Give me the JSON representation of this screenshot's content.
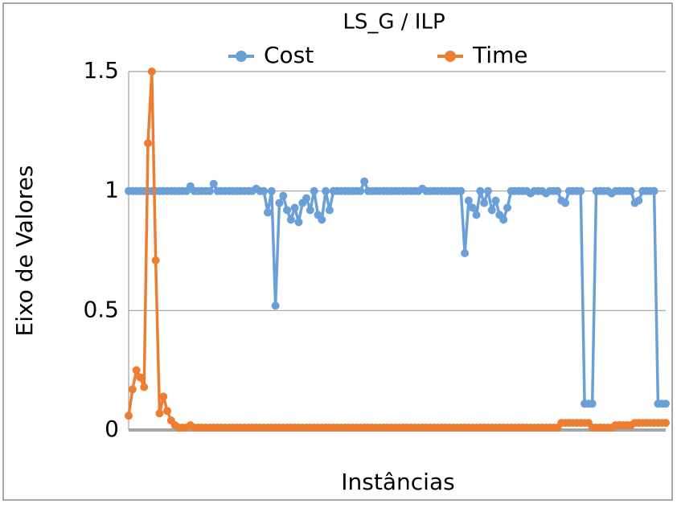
{
  "chart_data": {
    "type": "line",
    "title": "LS_G / ILP",
    "y_label": "Eixo de Valores",
    "x_label": "Instâncias",
    "categories": [
      null,
      null,
      null,
      null,
      null,
      null,
      null,
      null,
      null,
      null,
      null,
      null,
      null,
      null,
      null,
      null,
      null,
      null,
      null,
      null,
      null,
      null,
      null,
      null,
      null,
      null,
      null,
      null,
      null,
      null,
      null,
      null,
      null,
      null,
      null,
      null,
      null,
      null,
      null,
      null,
      null,
      null,
      null,
      null,
      null,
      null,
      null,
      null,
      null,
      null,
      null,
      null,
      null,
      null,
      null,
      null,
      null,
      null,
      null,
      null,
      null,
      null,
      null,
      null,
      null,
      null,
      null,
      null,
      null,
      null,
      null,
      null,
      null,
      null,
      null,
      null,
      null,
      null,
      null,
      null,
      null,
      null,
      null,
      null,
      null,
      null,
      null,
      null,
      null,
      null,
      null,
      null,
      null,
      null,
      null,
      null,
      null,
      null,
      null,
      null,
      null,
      null,
      null,
      null,
      null,
      null,
      null,
      null,
      null,
      null,
      null,
      null,
      null,
      null,
      null,
      null,
      null,
      null,
      null,
      null,
      null,
      null,
      null,
      null,
      null,
      null,
      null,
      null,
      null,
      null,
      null,
      null,
      null,
      null,
      null,
      null,
      null,
      null,
      null,
      null
    ],
    "series": [
      {
        "name": "Cost",
        "color": "#6a9fd8",
        "values": [
          1,
          1,
          1,
          1,
          1,
          1,
          1,
          1,
          1,
          1,
          1,
          1,
          1,
          1,
          1,
          1,
          1.02,
          1,
          1,
          1,
          1,
          1,
          1.03,
          1,
          1,
          1,
          1,
          1,
          1,
          1,
          1,
          1,
          1,
          1.01,
          1,
          1,
          0.91,
          1,
          0.52,
          0.95,
          0.98,
          0.92,
          0.88,
          0.93,
          0.87,
          0.95,
          0.97,
          0.92,
          1,
          0.9,
          0.88,
          1,
          0.92,
          1,
          1,
          1,
          1,
          1,
          1,
          1,
          1,
          1.04,
          1,
          1,
          1,
          1,
          1,
          1,
          1,
          1,
          1,
          1,
          1,
          1,
          1,
          1,
          1.01,
          1,
          1,
          1,
          1,
          1,
          1,
          1,
          1,
          1,
          1,
          0.74,
          0.96,
          0.93,
          0.9,
          1,
          0.95,
          1,
          0.92,
          0.96,
          0.9,
          0.88,
          0.93,
          1,
          1,
          1,
          1,
          1,
          0.99,
          1,
          1,
          1,
          0.99,
          1,
          1,
          1,
          0.96,
          0.95,
          1,
          1,
          1,
          1,
          0.11,
          0.11,
          0.11,
          1,
          1,
          1,
          1,
          0.99,
          1,
          1,
          1,
          1,
          1,
          0.95,
          0.96,
          1,
          1,
          1,
          1,
          0.11,
          0.11,
          0.11
        ]
      },
      {
        "name": "Time",
        "color": "#ed7d31",
        "values": [
          0.06,
          0.17,
          0.25,
          0.22,
          0.18,
          1.2,
          1.5,
          0.71,
          0.07,
          0.14,
          0.08,
          0.04,
          0.02,
          0.01,
          0.01,
          0.01,
          0.02,
          0.01,
          0.01,
          0.01,
          0.01,
          0.01,
          0.01,
          0.01,
          0.01,
          0.01,
          0.01,
          0.01,
          0.01,
          0.01,
          0.01,
          0.01,
          0.01,
          0.01,
          0.01,
          0.01,
          0.01,
          0.01,
          0.01,
          0.01,
          0.01,
          0.01,
          0.01,
          0.01,
          0.01,
          0.01,
          0.01,
          0.01,
          0.01,
          0.01,
          0.01,
          0.01,
          0.01,
          0.01,
          0.01,
          0.01,
          0.01,
          0.01,
          0.01,
          0.01,
          0.01,
          0.01,
          0.01,
          0.01,
          0.01,
          0.01,
          0.01,
          0.01,
          0.01,
          0.01,
          0.01,
          0.01,
          0.01,
          0.01,
          0.01,
          0.01,
          0.01,
          0.01,
          0.01,
          0.01,
          0.01,
          0.01,
          0.01,
          0.01,
          0.01,
          0.01,
          0.01,
          0.01,
          0.01,
          0.01,
          0.01,
          0.01,
          0.01,
          0.01,
          0.01,
          0.01,
          0.01,
          0.01,
          0.01,
          0.01,
          0.01,
          0.01,
          0.01,
          0.01,
          0.01,
          0.01,
          0.01,
          0.01,
          0.01,
          0.01,
          0.01,
          0.01,
          0.03,
          0.03,
          0.03,
          0.03,
          0.03,
          0.03,
          0.03,
          0.03,
          0.01,
          0.01,
          0.01,
          0.01,
          0.01,
          0.01,
          0.02,
          0.02,
          0.02,
          0.02,
          0.02,
          0.03,
          0.03,
          0.03,
          0.03,
          0.03,
          0.03,
          0.03,
          0.03,
          0.03
        ]
      }
    ],
    "ylim": [
      0,
      1.5
    ],
    "yticks": [
      0,
      0.5,
      1,
      1.5
    ],
    "grid": true,
    "legend": "top"
  }
}
